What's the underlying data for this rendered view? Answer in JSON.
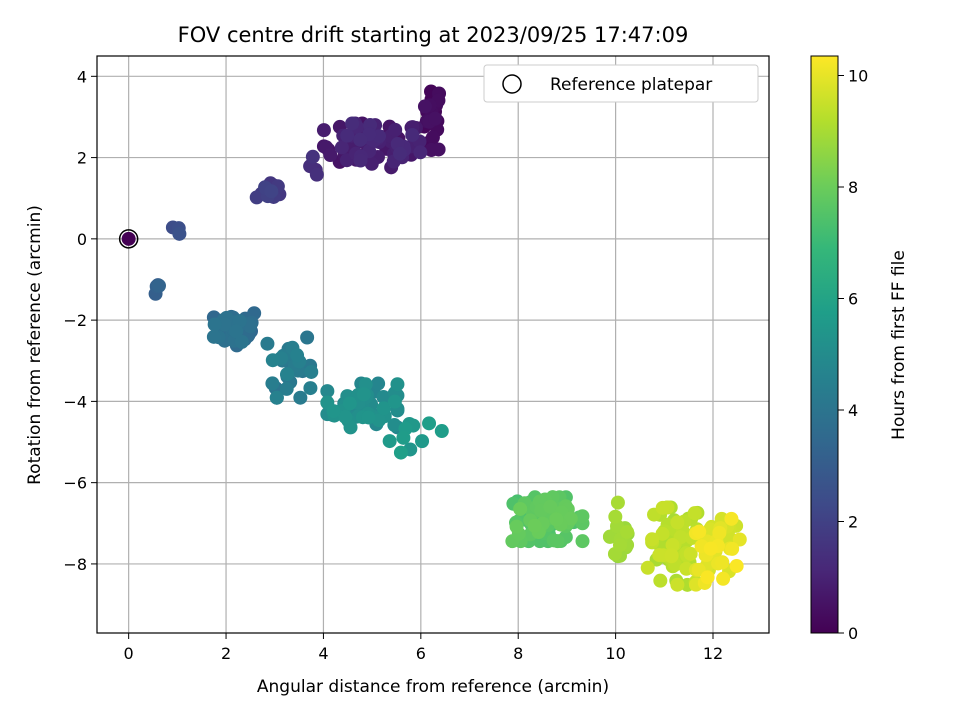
{
  "chart_data": {
    "type": "scatter",
    "title": "FOV centre drift starting at 2023/09/25 17:47:09",
    "xlabel": "Angular distance from reference (arcmin)",
    "ylabel": "Rotation from reference (arcmin)",
    "xlim": [
      -0.65,
      13.15
    ],
    "ylim": [
      -9.7,
      4.5
    ],
    "xticks": [
      0,
      2,
      4,
      6,
      8,
      10,
      12
    ],
    "yticks": [
      -8,
      -6,
      -4,
      -2,
      0,
      2,
      4
    ],
    "grid": true,
    "legend": {
      "position": "top-right",
      "entries": [
        "Reference platepar"
      ]
    },
    "reference_point": {
      "x": 0,
      "y": 0
    },
    "colorbar": {
      "label": "Hours from first FF file",
      "colormap": "viridis",
      "range": [
        0,
        10.35
      ],
      "ticks": [
        0,
        2,
        4,
        6,
        8,
        10
      ]
    },
    "clusters": [
      {
        "cx": 6.25,
        "cy": 3.0,
        "sx": 0.1,
        "sy": 0.45,
        "n": 25,
        "t0": 0.1,
        "t1": 0.5
      },
      {
        "cx": 5.0,
        "cy": 2.3,
        "sx": 0.55,
        "sy": 0.3,
        "n": 70,
        "t0": 0.5,
        "t1": 1.3
      },
      {
        "cx": 3.9,
        "cy": 1.75,
        "sx": 0.1,
        "sy": 0.15,
        "n": 4,
        "t0": 1.3,
        "t1": 1.5
      },
      {
        "cx": 2.9,
        "cy": 1.2,
        "sx": 0.15,
        "sy": 0.12,
        "n": 12,
        "t0": 1.5,
        "t1": 2.1
      },
      {
        "cx": 0.97,
        "cy": 0.15,
        "sx": 0.04,
        "sy": 0.12,
        "n": 3,
        "t0": 2.4,
        "t1": 2.6
      },
      {
        "cx": 0.6,
        "cy": -1.1,
        "sx": 0.03,
        "sy": 0.18,
        "n": 4,
        "t0": 3.0,
        "t1": 3.3
      },
      {
        "cx": 2.2,
        "cy": -2.2,
        "sx": 0.25,
        "sy": 0.25,
        "n": 45,
        "t0": 3.4,
        "t1": 4.0
      },
      {
        "cx": 3.3,
        "cy": -3.1,
        "sx": 0.25,
        "sy": 0.45,
        "n": 30,
        "t0": 4.0,
        "t1": 4.6
      },
      {
        "cx": 4.8,
        "cy": -4.1,
        "sx": 0.4,
        "sy": 0.3,
        "n": 60,
        "t0": 4.7,
        "t1": 5.4
      },
      {
        "cx": 5.9,
        "cy": -4.9,
        "sx": 0.3,
        "sy": 0.2,
        "n": 10,
        "t0": 5.4,
        "t1": 5.8
      },
      {
        "cx": 8.6,
        "cy": -6.9,
        "sx": 0.4,
        "sy": 0.3,
        "n": 85,
        "t0": 7.3,
        "t1": 8.0
      },
      {
        "cx": 10.1,
        "cy": -7.3,
        "sx": 0.12,
        "sy": 0.45,
        "n": 20,
        "t0": 8.7,
        "t1": 9.0
      },
      {
        "cx": 11.2,
        "cy": -7.6,
        "sx": 0.3,
        "sy": 0.55,
        "n": 60,
        "t0": 9.0,
        "t1": 9.6
      },
      {
        "cx": 12.1,
        "cy": -7.7,
        "sx": 0.25,
        "sy": 0.45,
        "n": 45,
        "t0": 9.6,
        "t1": 10.3
      }
    ]
  }
}
